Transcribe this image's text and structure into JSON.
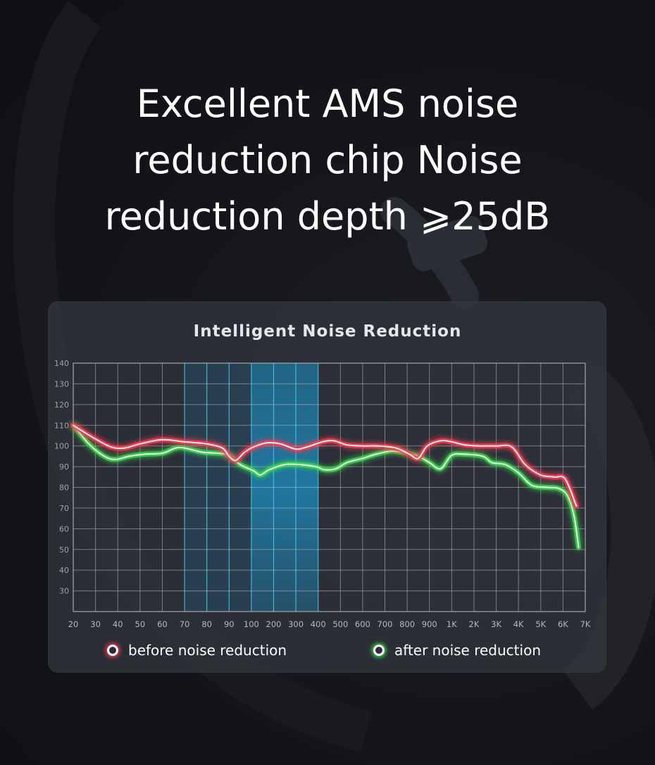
{
  "headline": {
    "line1": "Excellent AMS noise",
    "line2": "reduction chip Noise",
    "line3": "reduction depth ⩾25dB"
  },
  "colors": {
    "before": "#ff3a52",
    "after": "#37e04a",
    "grid": "#b8bcc6",
    "highlight": "#1fa6d8"
  },
  "chart_data": {
    "type": "line",
    "title": "Intelligent Noise Reduction",
    "xlabel": "",
    "ylabel": "",
    "ylim": [
      20,
      140
    ],
    "grid": true,
    "legend_position": "bottom",
    "y_ticks": [
      "140",
      "130",
      "120",
      "110",
      "100",
      "90",
      "80",
      "70",
      "60",
      "50",
      "40",
      "30"
    ],
    "x_ticks": [
      "20",
      "30",
      "40",
      "50",
      "60",
      "70",
      "80",
      "90",
      "100",
      "200",
      "300",
      "400",
      "500",
      "600",
      "700",
      "800",
      "900",
      "1K",
      "2K",
      "3K",
      "4K",
      "5K",
      "6K",
      "7K"
    ],
    "highlight_range": [
      "100",
      "400"
    ],
    "series": [
      {
        "name": "before noise reduction",
        "points": [
          [
            0,
            110
          ],
          [
            0.9,
            104
          ],
          [
            1.7,
            99.5
          ],
          [
            2.3,
            99
          ],
          [
            3.0,
            101
          ],
          [
            4.0,
            103
          ],
          [
            5.0,
            102
          ],
          [
            6.0,
            101
          ],
          [
            6.7,
            99
          ],
          [
            7.0,
            95
          ],
          [
            7.3,
            93
          ],
          [
            7.7,
            97
          ],
          [
            8.1,
            99.5
          ],
          [
            8.7,
            101.5
          ],
          [
            9.3,
            101
          ],
          [
            10.0,
            98.5
          ],
          [
            10.5,
            99.5
          ],
          [
            11.2,
            102
          ],
          [
            11.7,
            102.5
          ],
          [
            12.3,
            100.5
          ],
          [
            13.0,
            100
          ],
          [
            13.7,
            100
          ],
          [
            14.5,
            99
          ],
          [
            15.1,
            96
          ],
          [
            15.5,
            94
          ],
          [
            15.9,
            100
          ],
          [
            16.5,
            102.5
          ],
          [
            17.0,
            102
          ],
          [
            17.6,
            100.5
          ],
          [
            18.3,
            100
          ],
          [
            19.0,
            100
          ],
          [
            19.7,
            99.5
          ],
          [
            20.3,
            91
          ],
          [
            21.0,
            86
          ],
          [
            21.6,
            85
          ],
          [
            22.1,
            84
          ],
          [
            22.6,
            71
          ]
        ]
      },
      {
        "name": "after noise reduction",
        "points": [
          [
            0,
            110
          ],
          [
            0.7,
            101
          ],
          [
            1.4,
            95
          ],
          [
            1.9,
            93.5
          ],
          [
            2.5,
            95
          ],
          [
            3.2,
            96
          ],
          [
            4.0,
            96.5
          ],
          [
            4.6,
            99
          ],
          [
            5.0,
            99
          ],
          [
            5.8,
            97
          ],
          [
            6.5,
            96.5
          ],
          [
            7.0,
            95.5
          ],
          [
            7.5,
            91
          ],
          [
            8.1,
            88
          ],
          [
            8.4,
            86
          ],
          [
            8.8,
            88.5
          ],
          [
            9.5,
            91
          ],
          [
            10.2,
            91
          ],
          [
            10.9,
            90
          ],
          [
            11.3,
            88.5
          ],
          [
            11.8,
            89
          ],
          [
            12.3,
            92
          ],
          [
            13.0,
            94
          ],
          [
            13.6,
            96
          ],
          [
            14.3,
            97.5
          ],
          [
            15.0,
            96.5
          ],
          [
            15.5,
            95
          ],
          [
            16.0,
            92
          ],
          [
            16.5,
            89
          ],
          [
            17.0,
            95.5
          ],
          [
            17.6,
            96
          ],
          [
            18.4,
            95
          ],
          [
            18.8,
            92
          ],
          [
            19.4,
            91
          ],
          [
            20.0,
            87
          ],
          [
            20.6,
            81
          ],
          [
            21.3,
            80
          ],
          [
            21.8,
            79.5
          ],
          [
            22.2,
            76
          ],
          [
            22.5,
            66
          ],
          [
            22.7,
            51
          ]
        ]
      }
    ]
  }
}
